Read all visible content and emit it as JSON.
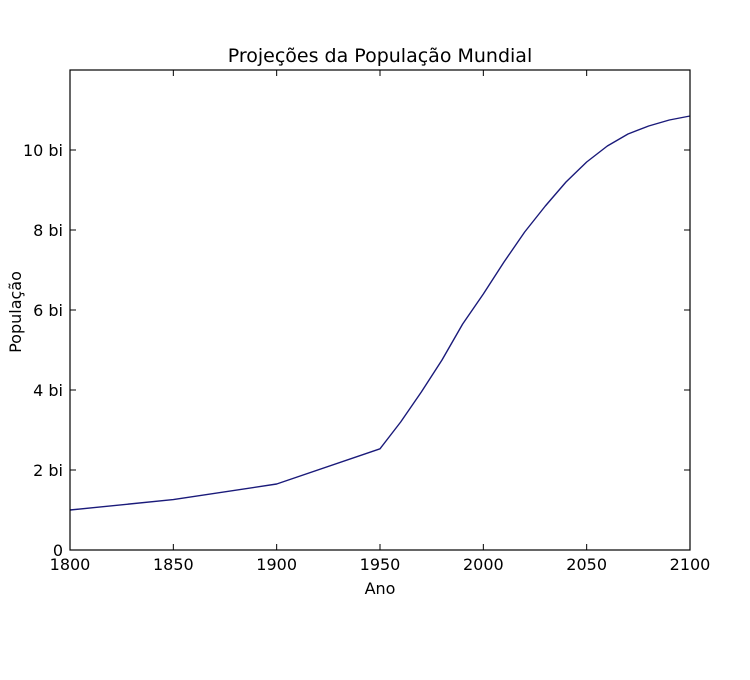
{
  "chart_data": {
    "type": "line",
    "title": "Projeções da População Mundial",
    "xlabel": "Ano",
    "ylabel": "População",
    "xlim": [
      1800,
      2100
    ],
    "ylim": [
      0,
      12
    ],
    "grid": false,
    "legend": "none",
    "x_ticks": [
      {
        "value": 1800,
        "label": "1800"
      },
      {
        "value": 1850,
        "label": "1850"
      },
      {
        "value": 1900,
        "label": "1900"
      },
      {
        "value": 1950,
        "label": "1950"
      },
      {
        "value": 2000,
        "label": "2000"
      },
      {
        "value": 2050,
        "label": "2050"
      },
      {
        "value": 2100,
        "label": "2100"
      }
    ],
    "y_ticks": [
      {
        "value": 0,
        "label": "0"
      },
      {
        "value": 2,
        "label": "2 bi"
      },
      {
        "value": 4,
        "label": "4 bi"
      },
      {
        "value": 6,
        "label": "6 bi"
      },
      {
        "value": 8,
        "label": "8 bi"
      },
      {
        "value": 10,
        "label": "10 bi"
      }
    ],
    "series": [
      {
        "color": "#1a1a7a",
        "x": [
          1800,
          1850,
          1900,
          1950,
          1960,
          1970,
          1980,
          1990,
          2000,
          2010,
          2020,
          2030,
          2040,
          2050,
          2060,
          2070,
          2080,
          2090,
          2100
        ],
        "y": [
          1.0,
          1.26,
          1.65,
          2.53,
          3.2,
          3.95,
          4.75,
          5.65,
          6.4,
          7.2,
          7.95,
          8.6,
          9.2,
          9.7,
          10.1,
          10.4,
          10.6,
          10.75,
          10.85
        ]
      }
    ]
  }
}
